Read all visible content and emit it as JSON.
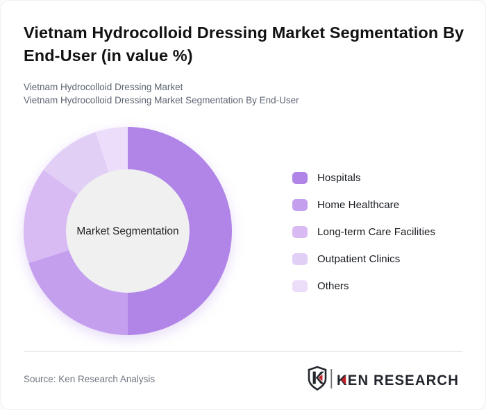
{
  "card": {
    "title": "Vietnam Hydrocolloid Dressing Market Segmentation By End-User (in value %)",
    "subtitle_line1": "Vietnam Hydrocolloid Dressing Market",
    "subtitle_line2": "Vietnam Hydrocolloid Dressing Market Segmentation By End-User",
    "source": "Source: Ken Research Analysis",
    "logo_text": "KEN RESEARCH"
  },
  "chart_data": {
    "type": "pie",
    "variant": "donut",
    "title": "Vietnam Hydrocolloid Dressing Market Segmentation By End-User (in value %)",
    "center_label": "Market Segmentation",
    "unit": "value %",
    "categories": [
      "Hospitals",
      "Home Healthcare",
      "Long-term Care Facilities",
      "Outpatient Clinics",
      "Others"
    ],
    "values": [
      50,
      20,
      15,
      10,
      5
    ],
    "colors": [
      "#b184e8",
      "#c49fee",
      "#d8bbf3",
      "#e2cff6",
      "#ecdefa"
    ],
    "hole_color": "#f0f0f0",
    "legend_position": "right",
    "start_angle_deg": 0,
    "direction": "clockwise"
  },
  "logo_colors": {
    "ink": "#23262d",
    "accent_red": "#c22127",
    "bar_gray": "#6b7077"
  }
}
